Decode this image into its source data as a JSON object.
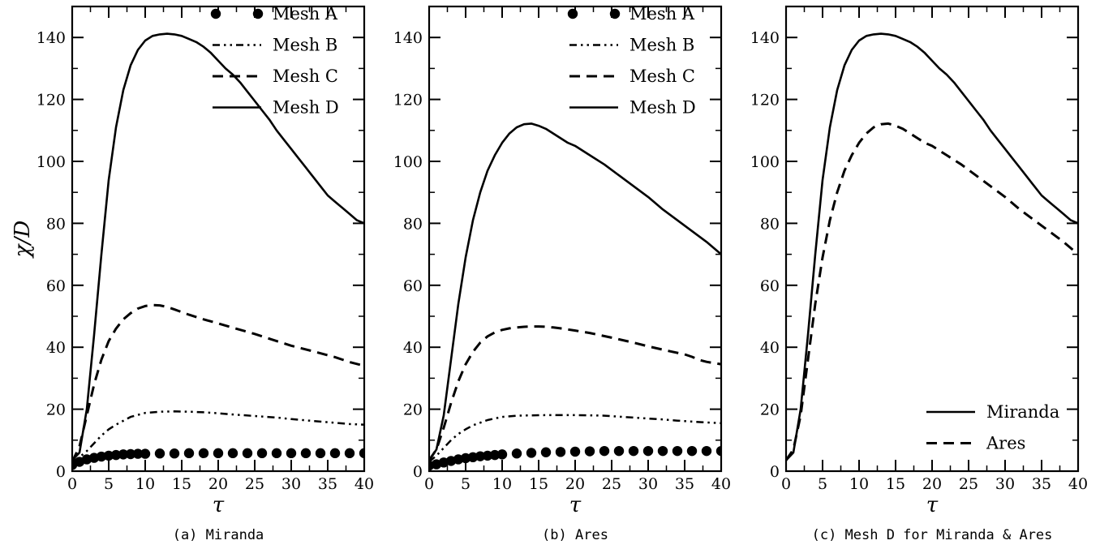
{
  "chart_data": [
    {
      "type": "line",
      "caption": "(a) Miranda",
      "xlabel": "τ",
      "ylabel": "χ/D",
      "xlim": [
        0,
        40
      ],
      "ylim": [
        0,
        150
      ],
      "xticks": [
        0,
        5,
        10,
        15,
        20,
        25,
        30,
        35,
        40
      ],
      "yticks": [
        0,
        20,
        40,
        60,
        80,
        100,
        120,
        140
      ],
      "legend_position": "top-right",
      "series": [
        {
          "name": "Mesh A",
          "style": "dots",
          "x": [
            0,
            1,
            2,
            3,
            4,
            5,
            6,
            7,
            8,
            9,
            10,
            12,
            14,
            16,
            18,
            20,
            22,
            24,
            26,
            28,
            30,
            32,
            34,
            36,
            38,
            40
          ],
          "y": [
            2.0,
            3.0,
            3.8,
            4.3,
            4.7,
            5.0,
            5.2,
            5.4,
            5.5,
            5.6,
            5.6,
            5.7,
            5.7,
            5.8,
            5.8,
            5.8,
            5.8,
            5.8,
            5.8,
            5.8,
            5.8,
            5.8,
            5.8,
            5.8,
            5.8,
            5.8
          ]
        },
        {
          "name": "Mesh B",
          "style": "dashdotdot",
          "x": [
            0,
            1,
            2,
            3,
            4,
            5,
            6,
            8,
            10,
            12,
            14,
            16,
            18,
            20,
            22,
            25,
            28,
            30,
            33,
            36,
            38,
            40
          ],
          "y": [
            3,
            4.5,
            6.5,
            9,
            11.5,
            13.5,
            15,
            17.5,
            18.8,
            19.2,
            19.3,
            19.2,
            19,
            18.7,
            18.3,
            17.8,
            17.3,
            16.8,
            16.2,
            15.6,
            15.2,
            15
          ]
        },
        {
          "name": "Mesh C",
          "style": "dash",
          "x": [
            0,
            1,
            2,
            3,
            4,
            5,
            6,
            7,
            8,
            9,
            10,
            11,
            12,
            13,
            14,
            16,
            18,
            20,
            22,
            25,
            28,
            30,
            33,
            36,
            38,
            40
          ],
          "y": [
            3,
            8,
            18,
            28,
            36,
            42,
            46,
            49,
            51,
            52.5,
            53.3,
            53.6,
            53.5,
            53,
            52.2,
            50.5,
            49,
            47.7,
            46.3,
            44.3,
            42,
            40.5,
            38.7,
            36.8,
            35.2,
            34
          ]
        },
        {
          "name": "Mesh D",
          "style": "solid",
          "x": [
            0,
            1,
            2,
            3,
            4,
            5,
            6,
            7,
            8,
            9,
            10,
            11,
            12,
            13,
            14,
            15,
            16,
            17,
            18,
            19,
            20,
            21,
            22,
            23,
            24,
            25,
            26,
            27,
            28,
            29,
            30,
            31,
            32,
            33,
            34,
            35,
            36,
            37,
            38,
            39,
            40
          ],
          "y": [
            3.5,
            6,
            20,
            44,
            70,
            94,
            111,
            123,
            131,
            136,
            139,
            140.5,
            141,
            141.2,
            141,
            140.5,
            139.5,
            138.5,
            137,
            135,
            132.5,
            130,
            128,
            125.5,
            122.5,
            119.5,
            116.5,
            113.5,
            110,
            107,
            104,
            101,
            98,
            95,
            92,
            89,
            87,
            85,
            83,
            81,
            80
          ]
        }
      ]
    },
    {
      "type": "line",
      "caption": "(b) Ares",
      "xlabel": "τ",
      "ylabel": "",
      "xlim": [
        0,
        40
      ],
      "ylim": [
        0,
        150
      ],
      "xticks": [
        0,
        5,
        10,
        15,
        20,
        25,
        30,
        35,
        40
      ],
      "yticks": [
        0,
        20,
        40,
        60,
        80,
        100,
        120,
        140
      ],
      "legend_position": "top-right",
      "series": [
        {
          "name": "Mesh A",
          "style": "dots",
          "x": [
            0,
            1,
            2,
            3,
            4,
            5,
            6,
            7,
            8,
            9,
            10,
            12,
            14,
            16,
            18,
            20,
            22,
            24,
            26,
            28,
            30,
            32,
            34,
            36,
            38,
            40
          ],
          "y": [
            1.8,
            2.2,
            2.8,
            3.3,
            3.8,
            4.2,
            4.5,
            4.8,
            5.0,
            5.2,
            5.4,
            5.7,
            5.9,
            6.1,
            6.2,
            6.3,
            6.4,
            6.5,
            6.5,
            6.5,
            6.5,
            6.5,
            6.5,
            6.5,
            6.5,
            6.5
          ]
        },
        {
          "name": "Mesh B",
          "style": "dashdotdot",
          "x": [
            0,
            1,
            2,
            3,
            4,
            5,
            6,
            8,
            10,
            12,
            14,
            16,
            18,
            20,
            22,
            24,
            26,
            28,
            30,
            32,
            34,
            36,
            38,
            40
          ],
          "y": [
            3,
            5,
            7.5,
            10,
            12,
            13.5,
            14.8,
            16.5,
            17.5,
            17.9,
            18,
            18.1,
            18.1,
            18.1,
            18,
            17.9,
            17.6,
            17.3,
            17,
            16.7,
            16.3,
            16,
            15.7,
            15.5
          ]
        },
        {
          "name": "Mesh C",
          "style": "dash",
          "x": [
            0,
            1,
            2,
            3,
            4,
            5,
            6,
            7,
            8,
            9,
            10,
            11,
            12,
            13,
            14,
            15,
            16,
            17,
            18,
            20,
            22,
            25,
            28,
            30,
            33,
            35,
            36,
            37,
            38,
            40
          ],
          "y": [
            3.5,
            7,
            14,
            22,
            29,
            34.5,
            38.5,
            41.5,
            43.5,
            44.8,
            45.6,
            46.1,
            46.4,
            46.6,
            46.7,
            46.7,
            46.6,
            46.4,
            46.1,
            45.4,
            44.6,
            43.1,
            41.5,
            40.3,
            38.7,
            37.7,
            36.9,
            35.9,
            35.3,
            34.5
          ]
        },
        {
          "name": "Mesh D",
          "style": "solid",
          "x": [
            0,
            1,
            2,
            3,
            4,
            5,
            6,
            7,
            8,
            9,
            10,
            11,
            12,
            13,
            14,
            15,
            16,
            17,
            18,
            19,
            20,
            22,
            24,
            26,
            28,
            30,
            32,
            34,
            36,
            38,
            40
          ],
          "y": [
            3.5,
            7,
            18,
            36,
            54,
            69,
            81,
            90,
            97,
            102,
            106,
            109,
            111,
            112,
            112.2,
            111.5,
            110.5,
            109,
            107.5,
            106,
            105,
            102,
            99,
            95.5,
            92,
            88.5,
            84.5,
            81,
            77.5,
            74,
            70
          ]
        }
      ]
    },
    {
      "type": "line",
      "caption": "(c) Mesh D for Miranda & Ares",
      "xlabel": "τ",
      "ylabel": "",
      "xlim": [
        0,
        40
      ],
      "ylim": [
        0,
        150
      ],
      "xticks": [
        0,
        5,
        10,
        15,
        20,
        25,
        30,
        35,
        40
      ],
      "yticks": [
        0,
        20,
        40,
        60,
        80,
        100,
        120,
        140
      ],
      "legend_position": "bottom-right",
      "series": [
        {
          "name": "Miranda",
          "style": "solid",
          "x": [
            0,
            1,
            2,
            3,
            4,
            5,
            6,
            7,
            8,
            9,
            10,
            11,
            12,
            13,
            14,
            15,
            16,
            17,
            18,
            19,
            20,
            21,
            22,
            23,
            24,
            25,
            26,
            27,
            28,
            29,
            30,
            31,
            32,
            33,
            34,
            35,
            36,
            37,
            38,
            39,
            40
          ],
          "y": [
            3.5,
            6,
            20,
            44,
            70,
            94,
            111,
            123,
            131,
            136,
            139,
            140.5,
            141,
            141.2,
            141,
            140.5,
            139.5,
            138.5,
            137,
            135,
            132.5,
            130,
            128,
            125.5,
            122.5,
            119.5,
            116.5,
            113.5,
            110,
            107,
            104,
            101,
            98,
            95,
            92,
            89,
            87,
            85,
            83,
            81,
            80
          ]
        },
        {
          "name": "Ares",
          "style": "dash",
          "x": [
            0,
            1,
            2,
            3,
            4,
            5,
            6,
            7,
            8,
            9,
            10,
            11,
            12,
            13,
            14,
            15,
            16,
            17,
            18,
            19,
            20,
            22,
            24,
            26,
            28,
            30,
            32,
            34,
            36,
            38,
            40
          ],
          "y": [
            3.5,
            7,
            18,
            36,
            54,
            69,
            81,
            90,
            97,
            102,
            106,
            109,
            111,
            112,
            112.2,
            111.5,
            110.5,
            109,
            107.5,
            106,
            105,
            102,
            99,
            95.5,
            92,
            88.5,
            84.5,
            81,
            77.5,
            74,
            70
          ]
        }
      ]
    }
  ]
}
